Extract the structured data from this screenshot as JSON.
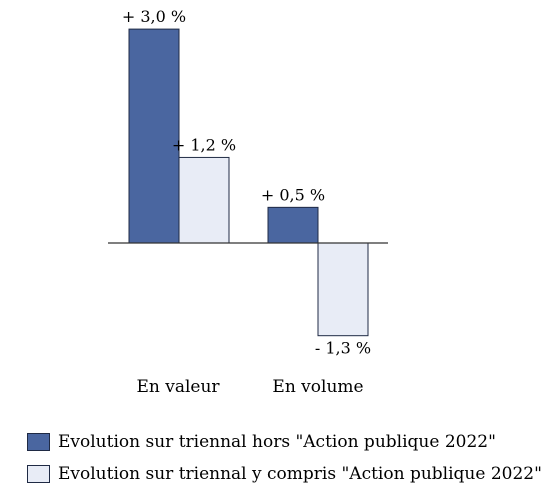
{
  "chart_data": {
    "type": "bar",
    "categories": [
      "En valeur",
      "En volume"
    ],
    "series": [
      {
        "name": "Evolution sur triennal hors \"Action publique 2022\"",
        "values": [
          3.0,
          0.5
        ],
        "labels": [
          "+ 3,0 %",
          "+ 0,5 %"
        ],
        "color": "#4a66a0"
      },
      {
        "name": "Evolution sur triennal y compris \"Action publique 2022\"",
        "values": [
          1.2,
          -1.3
        ],
        "labels": [
          "+ 1,2 %",
          "- 1,3 %"
        ],
        "color": "#e8ecf6"
      }
    ],
    "ylim": [
      -1.3,
      3.0
    ],
    "grid": false,
    "legend_position": "bottom-left"
  }
}
